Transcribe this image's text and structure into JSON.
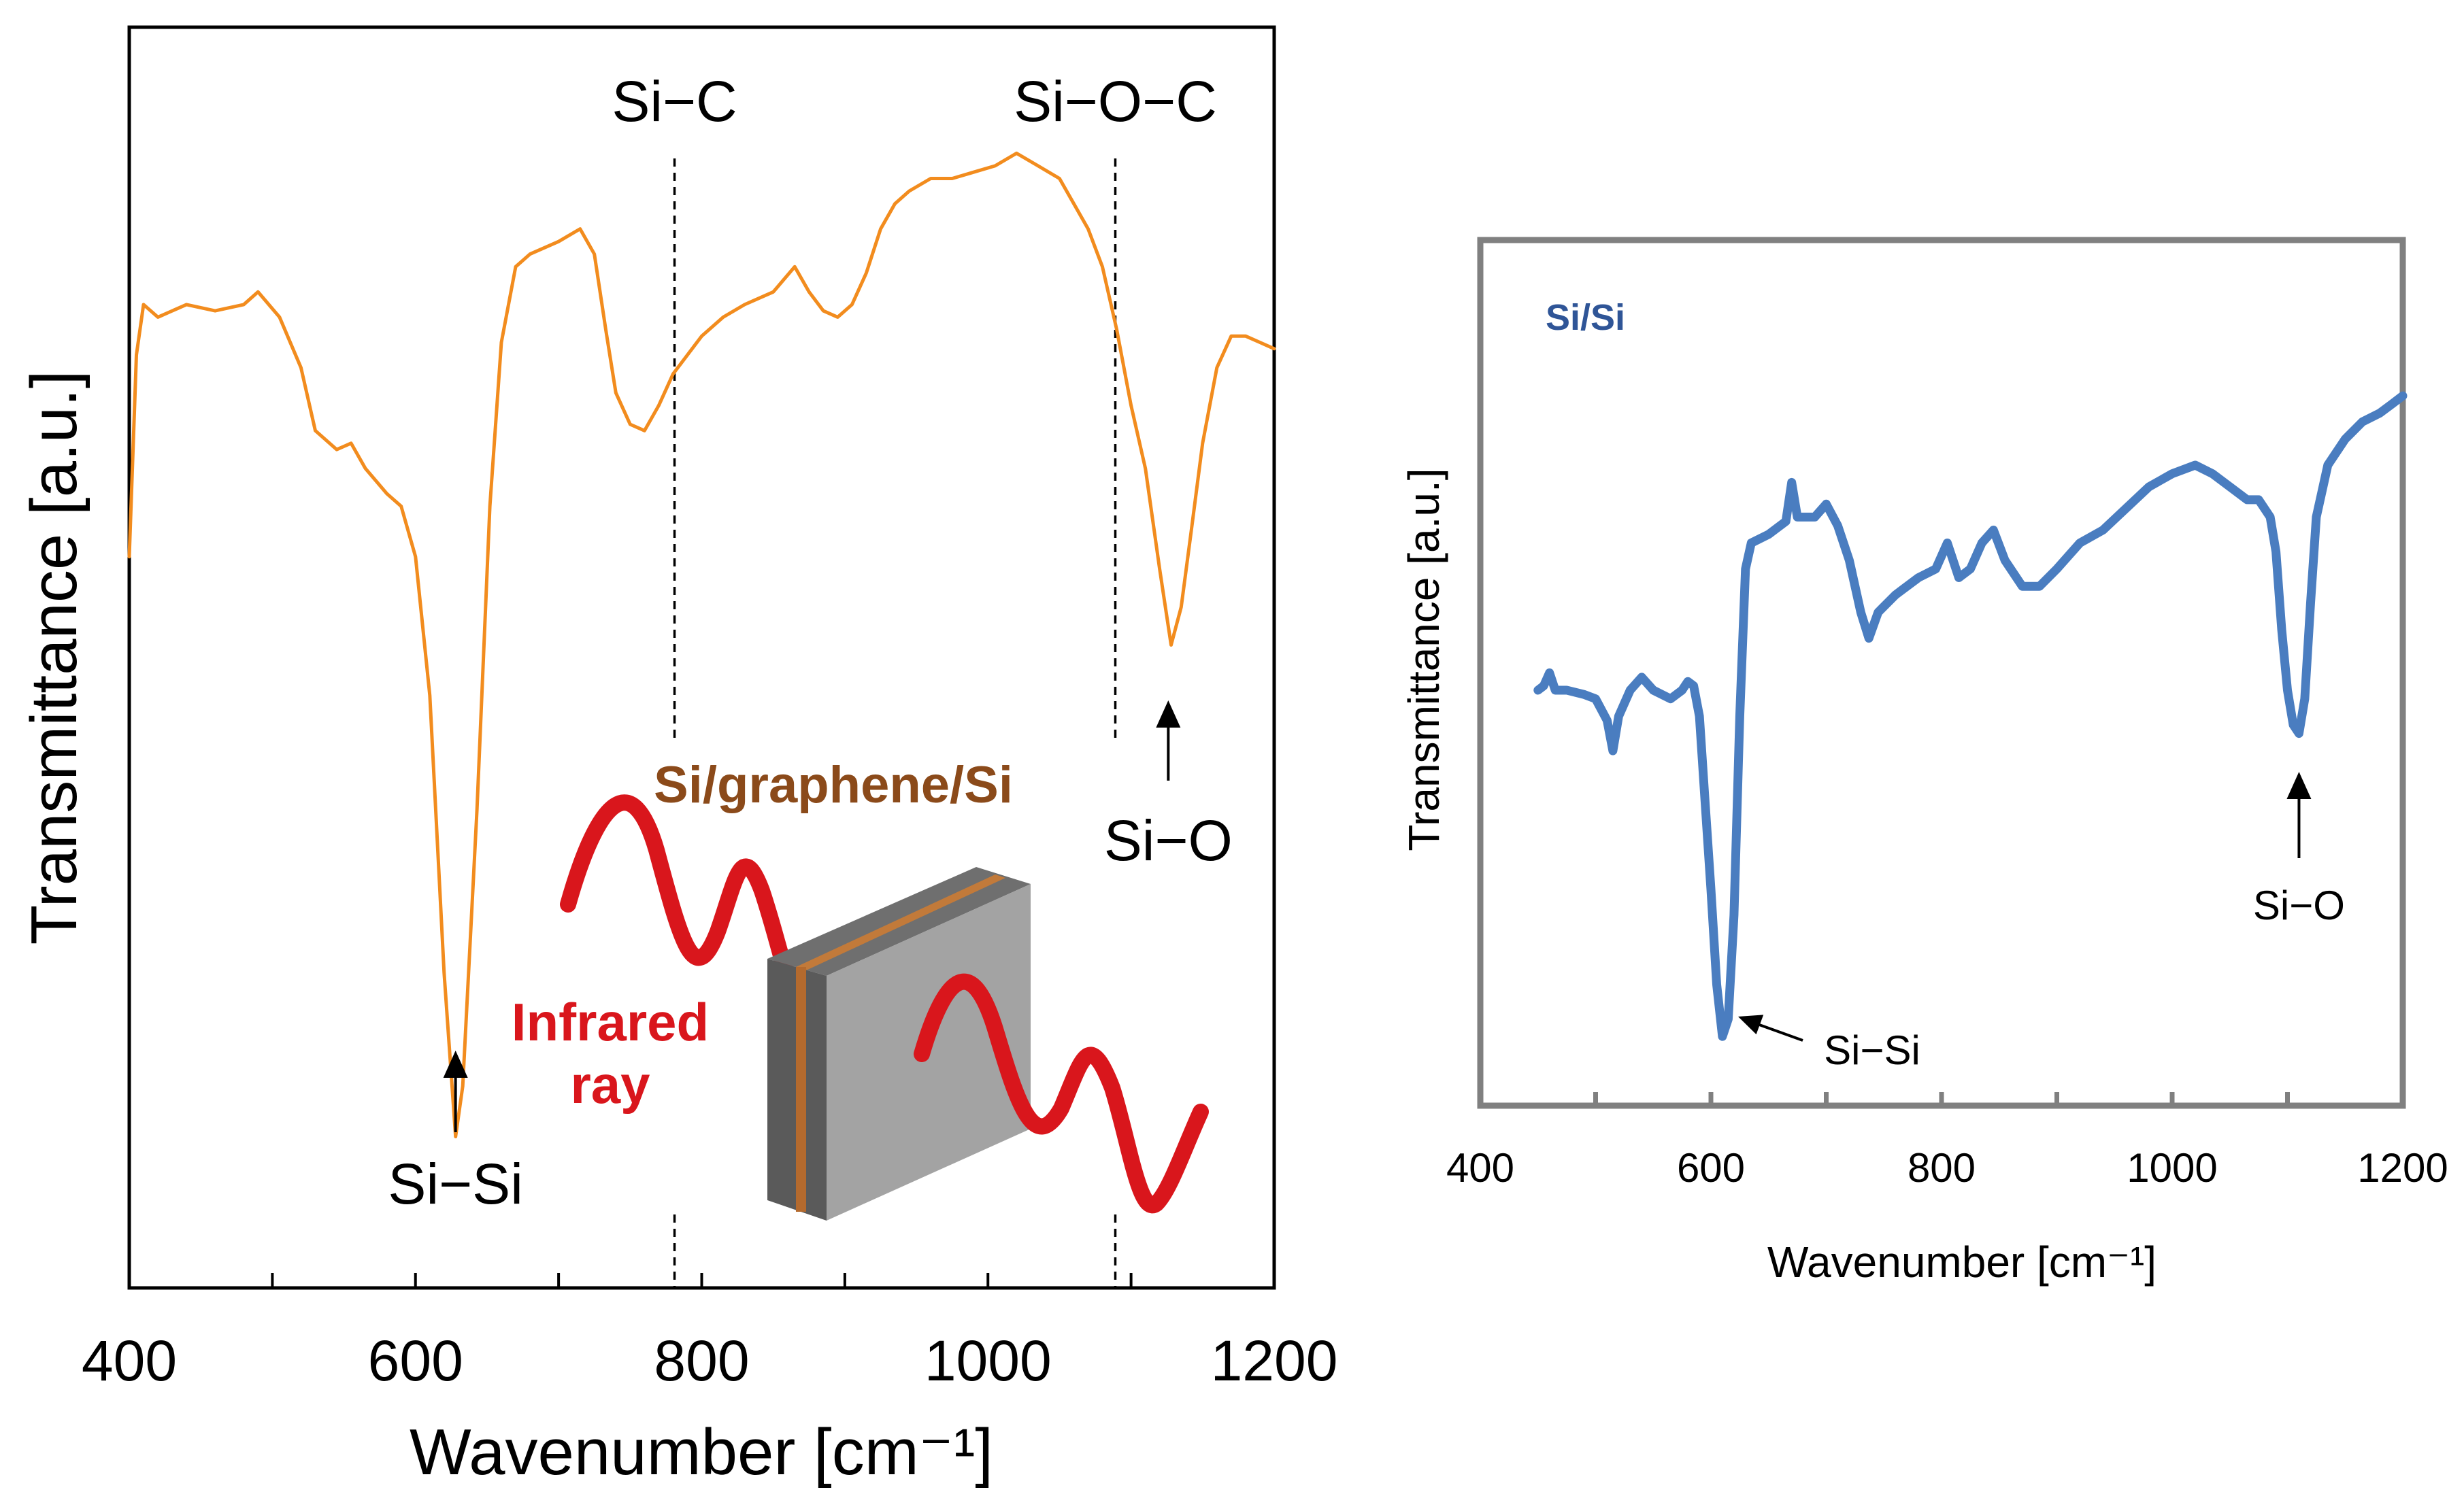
{
  "chart_data": [
    {
      "id": "left",
      "type": "line",
      "xlabel": "Wavenumber [cm⁻¹]",
      "ylabel": "Transmittance [a.u.]",
      "xlim": [
        400,
        1200
      ],
      "ylim": [
        0,
        100
      ],
      "xticks": [
        400,
        600,
        800,
        1000,
        1200
      ],
      "xtick_labels": [
        "400",
        "600",
        "800",
        "1000",
        "1200"
      ],
      "minor_xticks": [
        500,
        700,
        900,
        1100
      ],
      "series": [
        {
          "name": "Si/graphene/Si",
          "color": "#F28C1E",
          "points": [
            [
              400,
              58
            ],
            [
              405,
              74
            ],
            [
              410,
              78
            ],
            [
              420,
              77
            ],
            [
              440,
              78
            ],
            [
              460,
              77.5
            ],
            [
              480,
              78
            ],
            [
              490,
              79
            ],
            [
              505,
              77
            ],
            [
              520,
              73
            ],
            [
              530,
              68
            ],
            [
              545,
              66.5
            ],
            [
              555,
              67
            ],
            [
              565,
              65
            ],
            [
              580,
              63
            ],
            [
              590,
              62
            ],
            [
              600,
              58
            ],
            [
              610,
              47
            ],
            [
              620,
              25
            ],
            [
              628,
              12
            ],
            [
              633,
              16
            ],
            [
              643,
              38
            ],
            [
              652,
              62
            ],
            [
              660,
              75
            ],
            [
              670,
              81
            ],
            [
              680,
              82
            ],
            [
              700,
              83
            ],
            [
              715,
              84
            ],
            [
              725,
              82
            ],
            [
              733,
              76
            ],
            [
              740,
              71
            ],
            [
              750,
              68.5
            ],
            [
              760,
              68
            ],
            [
              770,
              70
            ],
            [
              780,
              72.5
            ],
            [
              790,
              74
            ],
            [
              800,
              75.5
            ],
            [
              815,
              77
            ],
            [
              830,
              78
            ],
            [
              850,
              79
            ],
            [
              865,
              81
            ],
            [
              875,
              79
            ],
            [
              885,
              77.5
            ],
            [
              895,
              77
            ],
            [
              905,
              78
            ],
            [
              915,
              80.5
            ],
            [
              925,
              84
            ],
            [
              935,
              86
            ],
            [
              945,
              87
            ],
            [
              960,
              88
            ],
            [
              975,
              88
            ],
            [
              990,
              88.5
            ],
            [
              1005,
              89
            ],
            [
              1020,
              90
            ],
            [
              1035,
              89
            ],
            [
              1050,
              88
            ],
            [
              1060,
              86
            ],
            [
              1070,
              84
            ],
            [
              1080,
              81
            ],
            [
              1090,
              76
            ],
            [
              1100,
              70
            ],
            [
              1110,
              65
            ],
            [
              1120,
              57
            ],
            [
              1128,
              51
            ],
            [
              1135,
              54
            ],
            [
              1142,
              60
            ],
            [
              1150,
              67
            ],
            [
              1160,
              73
            ],
            [
              1170,
              75.5
            ],
            [
              1180,
              75.5
            ],
            [
              1190,
              75
            ],
            [
              1200,
              74.5
            ]
          ]
        }
      ],
      "annotations": [
        {
          "text": "Si−Si",
          "x": 628
        },
        {
          "text": "Si−O",
          "x": 1126
        },
        {
          "text": "Si−C",
          "x": 781
        },
        {
          "text": "Si−O−C",
          "x": 1089
        }
      ],
      "dashed_lines": [
        781,
        1089
      ],
      "inset": {
        "title": "Si/graphene/Si",
        "label_line1": "Infrared",
        "label_line2": "ray"
      }
    },
    {
      "id": "right",
      "type": "line",
      "title": "Si/Si",
      "xlabel": "Wavenumber [cm⁻¹]",
      "ylabel": "Transmittance [a.u.]",
      "xlim": [
        400,
        1200
      ],
      "ylim": [
        0,
        100
      ],
      "xticks": [
        400,
        600,
        800,
        1000,
        1200
      ],
      "xtick_labels": [
        "400",
        "600",
        "800",
        "1000",
        "1200"
      ],
      "minor_xticks": [
        500,
        700,
        900,
        1100
      ],
      "series": [
        {
          "name": "Si/Si",
          "color": "#4A7DC0",
          "points": [
            [
              450,
              48
            ],
            [
              455,
              48.5
            ],
            [
              460,
              50
            ],
            [
              465,
              48
            ],
            [
              475,
              48
            ],
            [
              490,
              47.5
            ],
            [
              500,
              47
            ],
            [
              510,
              44.5
            ],
            [
              515,
              41
            ],
            [
              520,
              45
            ],
            [
              530,
              48
            ],
            [
              540,
              49.5
            ],
            [
              550,
              48
            ],
            [
              565,
              47
            ],
            [
              575,
              48
            ],
            [
              580,
              49
            ],
            [
              585,
              48.5
            ],
            [
              590,
              45
            ],
            [
              595,
              35
            ],
            [
              600,
              25
            ],
            [
              605,
              14
            ],
            [
              610,
              8
            ],
            [
              615,
              10
            ],
            [
              620,
              22
            ],
            [
              625,
              45
            ],
            [
              630,
              62
            ],
            [
              635,
              65
            ],
            [
              650,
              66
            ],
            [
              665,
              67.5
            ],
            [
              670,
              72
            ],
            [
              675,
              68
            ],
            [
              690,
              68
            ],
            [
              700,
              69.5
            ],
            [
              710,
              67
            ],
            [
              720,
              63
            ],
            [
              730,
              57
            ],
            [
              737,
              54
            ],
            [
              745,
              57
            ],
            [
              760,
              59
            ],
            [
              780,
              61
            ],
            [
              795,
              62
            ],
            [
              805,
              65
            ],
            [
              815,
              61
            ],
            [
              825,
              62
            ],
            [
              835,
              65
            ],
            [
              845,
              66.5
            ],
            [
              855,
              63
            ],
            [
              870,
              60
            ],
            [
              885,
              60
            ],
            [
              900,
              62
            ],
            [
              920,
              65
            ],
            [
              940,
              66.5
            ],
            [
              960,
              69
            ],
            [
              980,
              71.5
            ],
            [
              1000,
              73
            ],
            [
              1020,
              74
            ],
            [
              1035,
              73
            ],
            [
              1050,
              71.5
            ],
            [
              1065,
              70
            ],
            [
              1075,
              70
            ],
            [
              1085,
              68
            ],
            [
              1090,
              64
            ],
            [
              1095,
              55
            ],
            [
              1100,
              48
            ],
            [
              1105,
              44
            ],
            [
              1110,
              43
            ],
            [
              1115,
              47
            ],
            [
              1120,
              58
            ],
            [
              1125,
              68
            ],
            [
              1135,
              74
            ],
            [
              1150,
              77
            ],
            [
              1165,
              79
            ],
            [
              1180,
              80
            ],
            [
              1190,
              81
            ],
            [
              1200,
              82
            ]
          ]
        }
      ],
      "annotations": [
        {
          "text": "Si−Si",
          "x": 610
        },
        {
          "text": "Si−O",
          "x": 1110
        }
      ]
    }
  ]
}
